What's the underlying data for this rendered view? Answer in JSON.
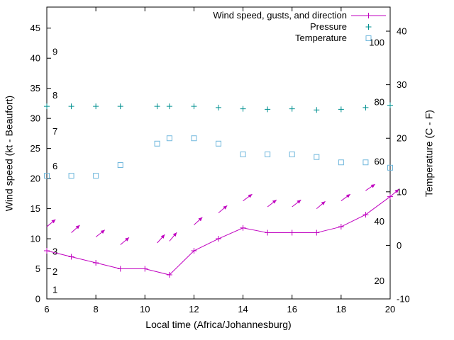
{
  "page": {
    "background_color": "#ffffff",
    "text_color": "#000000"
  },
  "chart_data": {
    "type": "line",
    "title": "",
    "xlabel": "Local time (Africa/Johannesburg)",
    "ylabel": "Wind speed (kt - Beaufort)",
    "y2label": "Temperature (C - F)",
    "grid": false,
    "legend_position": "top-right-inside",
    "x_range": [
      6,
      20
    ],
    "x_ticks": [
      6,
      8,
      10,
      12,
      14,
      16,
      18,
      20
    ],
    "y_left_range": [
      0,
      48.5
    ],
    "y_left_ticks": [
      0,
      5,
      10,
      15,
      20,
      25,
      30,
      35,
      40,
      45
    ],
    "y_right_range": [
      -10,
      44.5
    ],
    "y_right_ticks": [
      -10,
      0,
      10,
      20,
      30,
      40
    ],
    "beaufort_labels": [
      {
        "label": "1",
        "kt": 1.5
      },
      {
        "label": "2",
        "kt": 4.5
      },
      {
        "label": "3",
        "kt": 7.8
      },
      {
        "label": "6",
        "kt": 22
      },
      {
        "label": "7",
        "kt": 27.8
      },
      {
        "label": "8",
        "kt": 33.8
      },
      {
        "label": "9",
        "kt": 41
      }
    ],
    "fahrenheit_labels": [
      {
        "label": "20",
        "c": -6.7
      },
      {
        "label": "40",
        "c": 4.4
      },
      {
        "label": "60",
        "c": 15.6
      },
      {
        "label": "80",
        "c": 26.7
      },
      {
        "label": "100",
        "c": 37.8
      }
    ],
    "series": [
      {
        "name": "wind_speed",
        "label": "Wind speed, gusts, and direction",
        "style": "linespoints",
        "marker": "plus",
        "color": "#c000c0",
        "axis": "left",
        "x": [
          6,
          7,
          8,
          9,
          10,
          11,
          12,
          13,
          14,
          15,
          16,
          17,
          18,
          19,
          20
        ],
        "values": [
          8,
          7,
          6,
          5,
          5,
          4,
          8,
          10,
          11.8,
          11,
          11,
          11,
          12,
          14,
          17
        ]
      },
      {
        "name": "gusts",
        "style": "vectors",
        "color": "#c000c0",
        "axis": "left",
        "x": [
          6,
          7,
          8,
          9,
          10.5,
          11,
          12,
          13,
          14,
          15,
          16,
          17,
          18,
          19,
          20
        ],
        "values": [
          12,
          11,
          10.3,
          9,
          9.3,
          9.6,
          12.3,
          14.3,
          16.3,
          15.3,
          15.3,
          15,
          16.3,
          18,
          17
        ],
        "arrow_angle_deg": [
          40,
          42,
          38,
          40,
          48,
          50,
          42,
          40,
          36,
          38,
          38,
          40,
          36,
          34,
          40
        ]
      },
      {
        "name": "pressure",
        "label": "Pressure",
        "style": "points",
        "marker": "plus",
        "color": "#009090",
        "axis": "left",
        "x": [
          6,
          7,
          8,
          9,
          10.5,
          11,
          12,
          13,
          14,
          15,
          16,
          17,
          18,
          19,
          20
        ],
        "values": [
          32,
          32,
          32,
          32,
          32,
          32,
          32,
          31.8,
          31.6,
          31.5,
          31.6,
          31.4,
          31.5,
          31.8,
          32.2
        ]
      },
      {
        "name": "temperature",
        "label": "Temperature",
        "style": "points",
        "marker": "square",
        "color": "#6fb7dc",
        "axis": "right",
        "x": [
          6,
          7,
          8,
          9,
          10.5,
          11,
          12,
          13,
          14,
          15,
          16,
          17,
          18,
          19,
          20
        ],
        "values": [
          13,
          13,
          13,
          15,
          19,
          20,
          20,
          19,
          17,
          17,
          17,
          16.5,
          15.5,
          15.5,
          14.5
        ]
      }
    ]
  }
}
